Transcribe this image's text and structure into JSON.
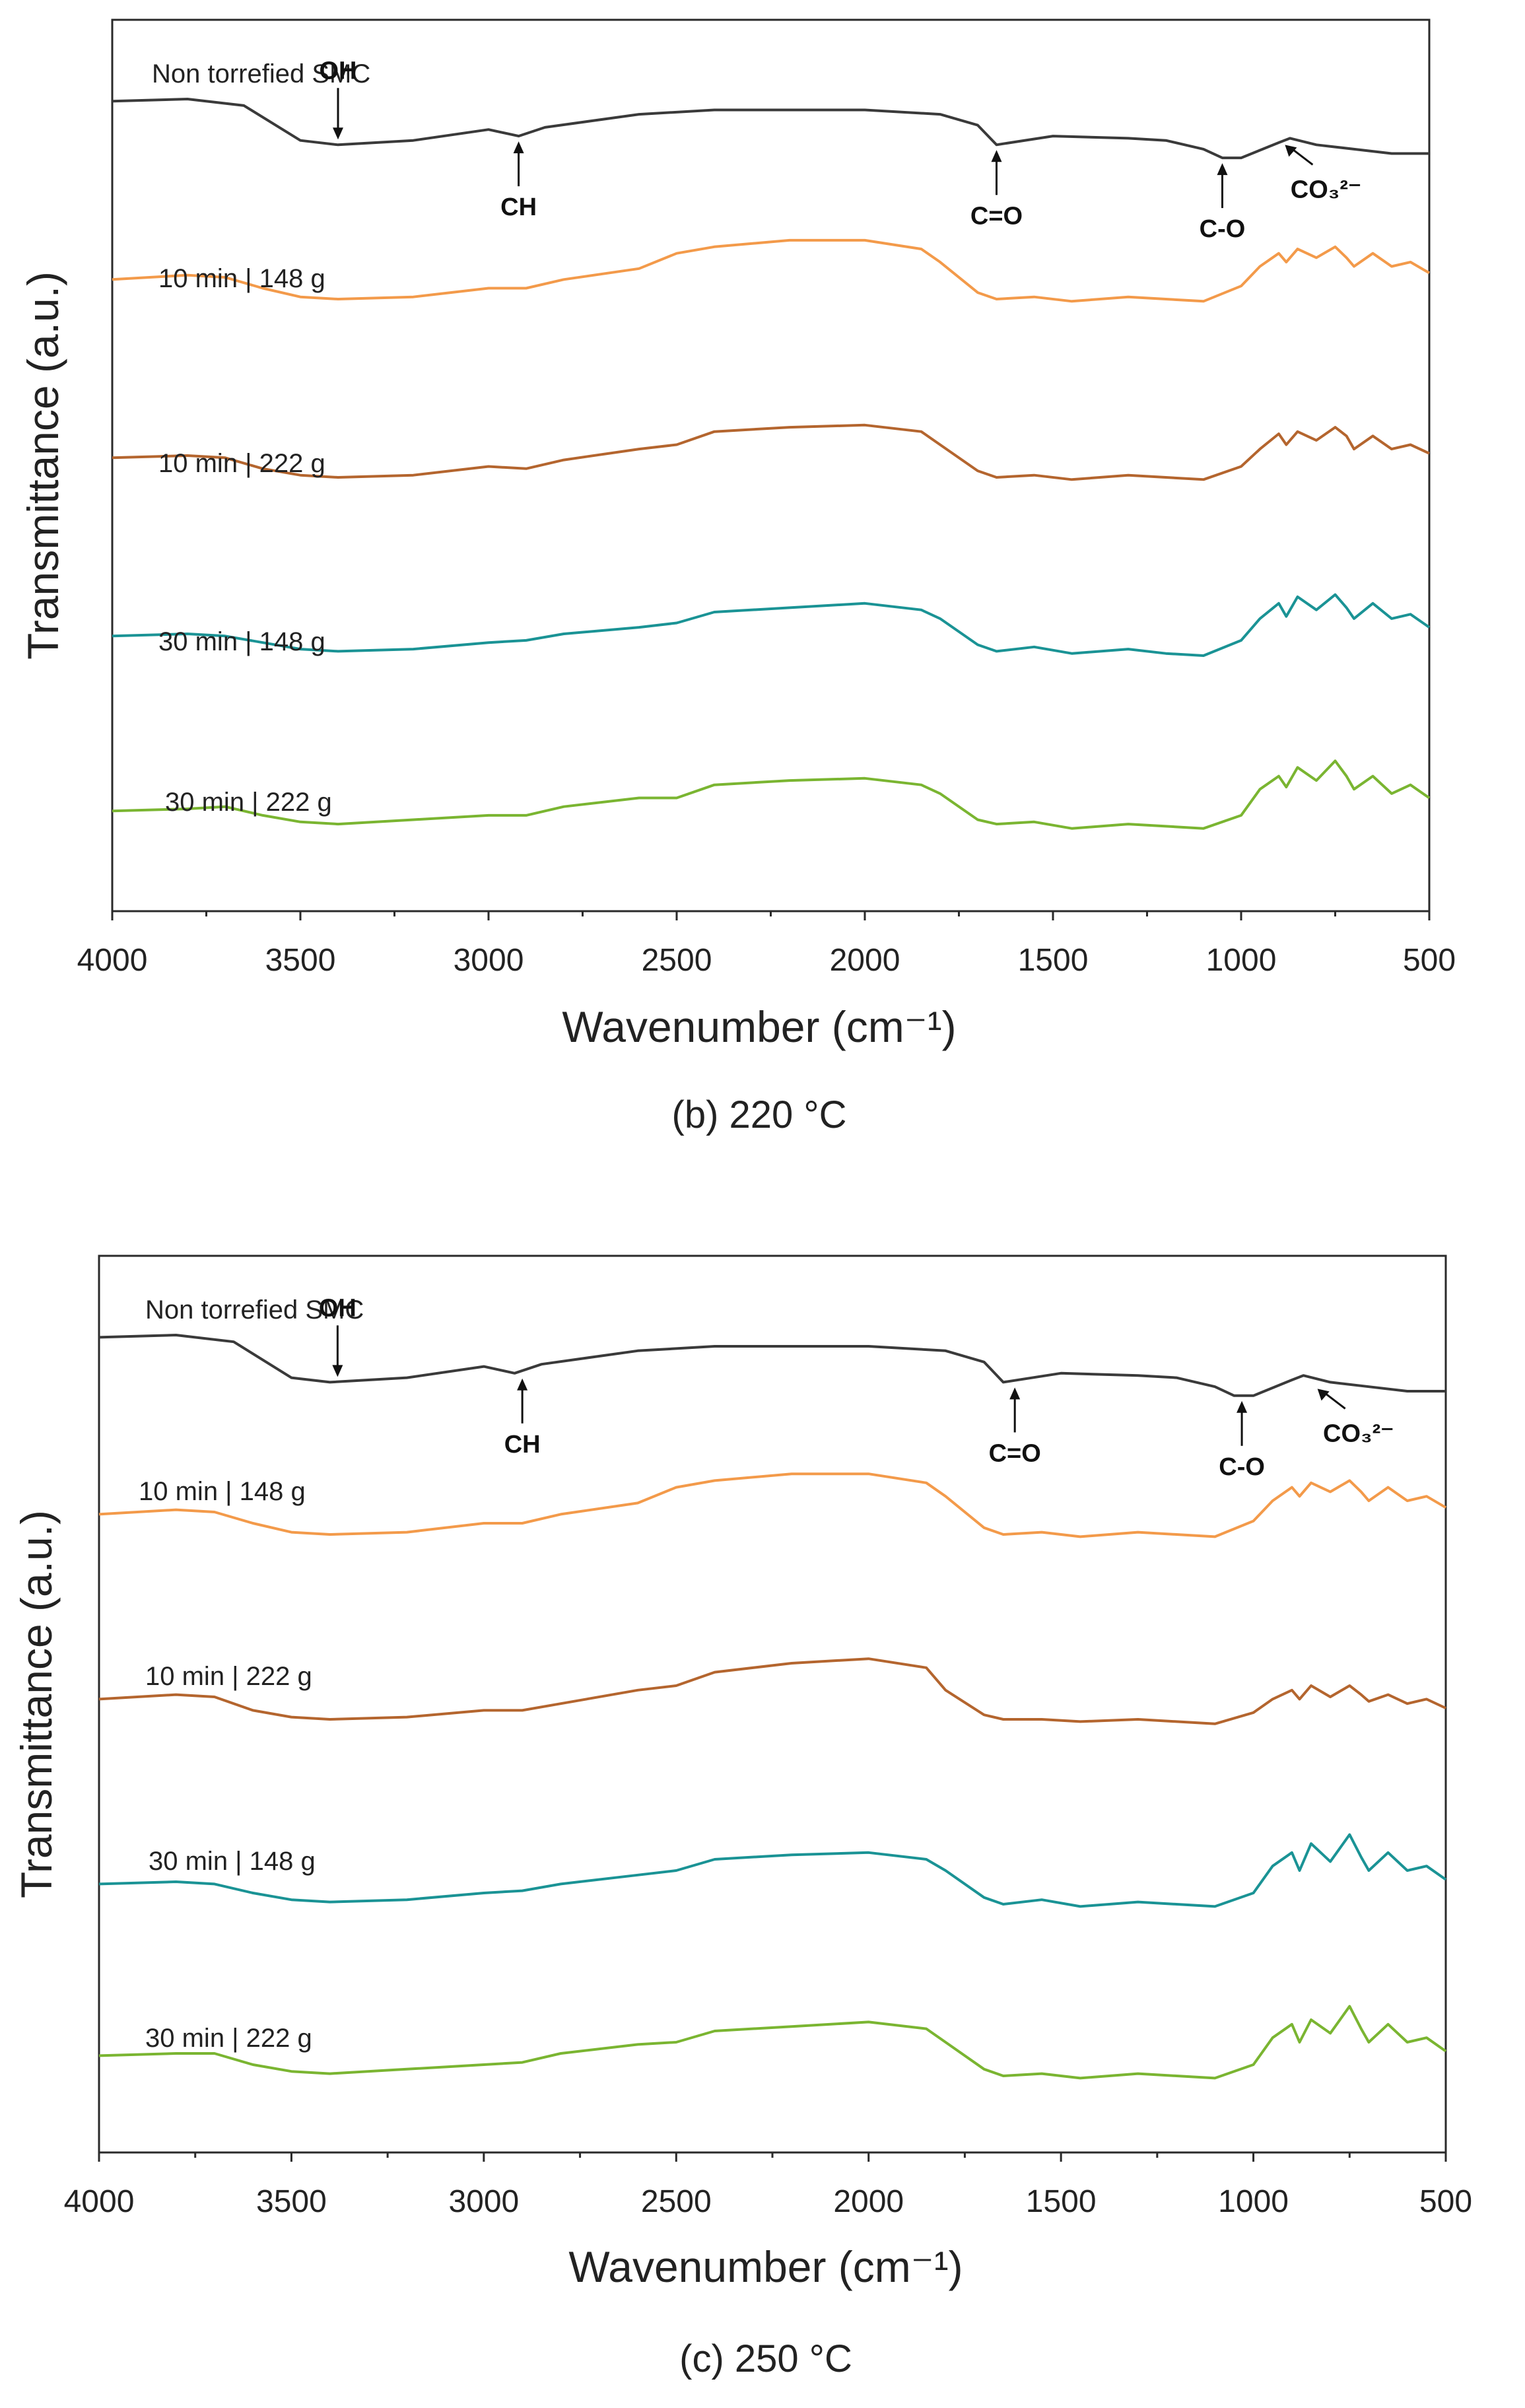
{
  "chart_data": [
    {
      "type": "line",
      "title": "(b) 220 °C",
      "xlabel": "Wavenumber (cm⁻¹)",
      "ylabel": "Transmittance (a.u.)",
      "xlim": [
        4000,
        500
      ],
      "x_ticks": [
        "4000",
        "3500",
        "3000",
        "2500",
        "2000",
        "1500",
        "1000",
        "500"
      ],
      "y_ticks": [],
      "series": [
        {
          "name": "Non torrefied SMC",
          "color": "#3a3a3a",
          "offset": 0,
          "x": [
            4000,
            3800,
            3650,
            3500,
            3400,
            3200,
            3000,
            2920,
            2850,
            2600,
            2400,
            2000,
            1800,
            1700,
            1650,
            1500,
            1300,
            1200,
            1100,
            1050,
            1000,
            900,
            870,
            800,
            700,
            600,
            500
          ],
          "y": [
            0.74,
            0.75,
            0.72,
            0.56,
            0.54,
            0.56,
            0.61,
            0.58,
            0.62,
            0.68,
            0.7,
            0.7,
            0.68,
            0.63,
            0.54,
            0.58,
            0.57,
            0.56,
            0.52,
            0.48,
            0.48,
            0.55,
            0.57,
            0.54,
            0.52,
            0.5,
            0.5
          ]
        },
        {
          "name": "10 min | 148 g",
          "color": "#f39a4a",
          "offset": 0,
          "x": [
            4000,
            3800,
            3700,
            3600,
            3500,
            3400,
            3200,
            3000,
            2900,
            2800,
            2600,
            2500,
            2400,
            2200,
            2000,
            1850,
            1800,
            1700,
            1650,
            1550,
            1450,
            1300,
            1200,
            1100,
            1000,
            950,
            900,
            880,
            850,
            800,
            750,
            720,
            700,
            650,
            600,
            550,
            500
          ],
          "y": [
            0.74,
            0.76,
            0.75,
            0.7,
            0.66,
            0.65,
            0.66,
            0.7,
            0.7,
            0.74,
            0.79,
            0.86,
            0.89,
            0.92,
            0.92,
            0.88,
            0.82,
            0.68,
            0.65,
            0.66,
            0.64,
            0.66,
            0.65,
            0.64,
            0.71,
            0.8,
            0.86,
            0.82,
            0.88,
            0.84,
            0.89,
            0.84,
            0.8,
            0.86,
            0.8,
            0.82,
            0.77
          ]
        },
        {
          "name": "10 min | 222 g",
          "color": "#b4652e",
          "offset": 0,
          "x": [
            4000,
            3800,
            3700,
            3600,
            3500,
            3400,
            3200,
            3000,
            2900,
            2800,
            2600,
            2500,
            2400,
            2200,
            2000,
            1850,
            1800,
            1700,
            1650,
            1550,
            1450,
            1300,
            1200,
            1100,
            1000,
            950,
            900,
            880,
            850,
            800,
            750,
            720,
            700,
            650,
            600,
            550,
            500
          ],
          "y": [
            0.74,
            0.75,
            0.74,
            0.69,
            0.66,
            0.65,
            0.66,
            0.7,
            0.69,
            0.73,
            0.78,
            0.8,
            0.86,
            0.88,
            0.89,
            0.86,
            0.8,
            0.68,
            0.65,
            0.66,
            0.64,
            0.66,
            0.65,
            0.64,
            0.7,
            0.78,
            0.85,
            0.8,
            0.86,
            0.82,
            0.88,
            0.84,
            0.78,
            0.84,
            0.78,
            0.8,
            0.76
          ]
        },
        {
          "name": "30 min | 148 g",
          "color": "#1a9395",
          "offset": 0,
          "x": [
            4000,
            3800,
            3700,
            3600,
            3500,
            3400,
            3200,
            3000,
            2900,
            2800,
            2600,
            2500,
            2400,
            2200,
            2000,
            1850,
            1800,
            1700,
            1650,
            1550,
            1450,
            1300,
            1200,
            1100,
            1000,
            950,
            900,
            880,
            850,
            800,
            750,
            720,
            700,
            650,
            600,
            550,
            500
          ],
          "y": [
            0.74,
            0.75,
            0.74,
            0.71,
            0.68,
            0.67,
            0.68,
            0.71,
            0.72,
            0.75,
            0.78,
            0.8,
            0.85,
            0.87,
            0.89,
            0.86,
            0.82,
            0.7,
            0.67,
            0.69,
            0.66,
            0.68,
            0.66,
            0.65,
            0.72,
            0.82,
            0.89,
            0.83,
            0.92,
            0.86,
            0.93,
            0.87,
            0.82,
            0.89,
            0.82,
            0.84,
            0.78
          ]
        },
        {
          "name": "30 min | 222 g",
          "color": "#7ab531",
          "offset": 0,
          "x": [
            4000,
            3800,
            3700,
            3600,
            3500,
            3400,
            3200,
            3000,
            2900,
            2800,
            2600,
            2500,
            2400,
            2200,
            2000,
            1850,
            1800,
            1700,
            1650,
            1550,
            1450,
            1300,
            1200,
            1100,
            1000,
            950,
            900,
            880,
            850,
            800,
            750,
            720,
            700,
            650,
            600,
            550,
            500
          ],
          "y": [
            0.74,
            0.75,
            0.76,
            0.72,
            0.69,
            0.68,
            0.7,
            0.72,
            0.72,
            0.76,
            0.8,
            0.8,
            0.86,
            0.88,
            0.89,
            0.86,
            0.82,
            0.7,
            0.68,
            0.69,
            0.66,
            0.68,
            0.67,
            0.66,
            0.72,
            0.84,
            0.9,
            0.85,
            0.94,
            0.88,
            0.97,
            0.9,
            0.84,
            0.9,
            0.82,
            0.86,
            0.8
          ]
        }
      ],
      "annotations": [
        {
          "label": "OH",
          "x": 3400,
          "direction": "down"
        },
        {
          "label": "CH",
          "x": 2920,
          "direction": "up"
        },
        {
          "label": "C=O",
          "x": 1650,
          "direction": "up"
        },
        {
          "label": "C-O",
          "x": 1050,
          "direction": "up"
        },
        {
          "label": "CO₃²⁻",
          "x": 880,
          "direction": "diag"
        }
      ]
    },
    {
      "type": "line",
      "title": "(c) 250 °C",
      "xlabel": "Wavenumber (cm⁻¹)",
      "ylabel": "Transmittance (a.u.)",
      "xlim": [
        4000,
        500
      ],
      "x_ticks": [
        "4000",
        "3500",
        "3000",
        "2500",
        "2000",
        "1500",
        "1000",
        "500"
      ],
      "y_ticks": [],
      "series": [
        {
          "name": "Non torrefied SMC",
          "color": "#3a3a3a",
          "offset": 0,
          "x": [
            4000,
            3800,
            3650,
            3500,
            3400,
            3200,
            3000,
            2920,
            2850,
            2600,
            2400,
            2000,
            1800,
            1700,
            1650,
            1500,
            1300,
            1200,
            1100,
            1050,
            1000,
            900,
            870,
            800,
            700,
            600,
            500
          ],
          "y": [
            0.74,
            0.75,
            0.72,
            0.56,
            0.54,
            0.56,
            0.61,
            0.58,
            0.62,
            0.68,
            0.7,
            0.7,
            0.68,
            0.63,
            0.54,
            0.58,
            0.57,
            0.56,
            0.52,
            0.48,
            0.48,
            0.55,
            0.57,
            0.54,
            0.52,
            0.5,
            0.5
          ]
        },
        {
          "name": "10 min | 148 g",
          "color": "#f39a4a",
          "offset": 0,
          "x": [
            4000,
            3800,
            3700,
            3600,
            3500,
            3400,
            3200,
            3000,
            2900,
            2800,
            2600,
            2500,
            2400,
            2200,
            2000,
            1850,
            1800,
            1700,
            1650,
            1550,
            1450,
            1300,
            1200,
            1100,
            1000,
            950,
            900,
            880,
            850,
            800,
            750,
            720,
            700,
            650,
            600,
            550,
            500
          ],
          "y": [
            0.74,
            0.76,
            0.75,
            0.7,
            0.66,
            0.65,
            0.66,
            0.7,
            0.7,
            0.74,
            0.79,
            0.86,
            0.89,
            0.92,
            0.92,
            0.88,
            0.82,
            0.68,
            0.65,
            0.66,
            0.64,
            0.66,
            0.65,
            0.64,
            0.71,
            0.8,
            0.86,
            0.82,
            0.88,
            0.84,
            0.89,
            0.84,
            0.8,
            0.86,
            0.8,
            0.82,
            0.77
          ]
        },
        {
          "name": "10 min | 222 g",
          "color": "#b4652e",
          "offset": 0,
          "x": [
            4000,
            3800,
            3700,
            3600,
            3500,
            3400,
            3200,
            3000,
            2900,
            2800,
            2600,
            2500,
            2400,
            2200,
            2000,
            1850,
            1800,
            1700,
            1650,
            1550,
            1450,
            1300,
            1200,
            1100,
            1000,
            950,
            900,
            880,
            850,
            800,
            750,
            720,
            700,
            650,
            600,
            550,
            500
          ],
          "y": [
            0.74,
            0.76,
            0.75,
            0.69,
            0.66,
            0.65,
            0.66,
            0.69,
            0.69,
            0.72,
            0.78,
            0.8,
            0.86,
            0.9,
            0.92,
            0.88,
            0.78,
            0.67,
            0.65,
            0.65,
            0.64,
            0.65,
            0.64,
            0.63,
            0.68,
            0.74,
            0.78,
            0.74,
            0.8,
            0.75,
            0.8,
            0.76,
            0.73,
            0.76,
            0.72,
            0.74,
            0.7
          ]
        },
        {
          "name": "30 min | 148 g",
          "color": "#1a9395",
          "offset": 0,
          "x": [
            4000,
            3800,
            3700,
            3600,
            3500,
            3400,
            3200,
            3000,
            2900,
            2800,
            2600,
            2500,
            2400,
            2200,
            2000,
            1850,
            1800,
            1700,
            1650,
            1550,
            1450,
            1300,
            1200,
            1100,
            1000,
            950,
            900,
            880,
            850,
            800,
            750,
            720,
            700,
            650,
            600,
            550,
            500
          ],
          "y": [
            0.74,
            0.75,
            0.74,
            0.7,
            0.67,
            0.66,
            0.67,
            0.7,
            0.71,
            0.74,
            0.78,
            0.8,
            0.85,
            0.87,
            0.88,
            0.85,
            0.8,
            0.68,
            0.65,
            0.67,
            0.64,
            0.66,
            0.65,
            0.64,
            0.7,
            0.82,
            0.88,
            0.8,
            0.92,
            0.84,
            0.96,
            0.86,
            0.8,
            0.88,
            0.8,
            0.82,
            0.76
          ]
        },
        {
          "name": "30 min | 222 g",
          "color": "#7ab531",
          "offset": 0,
          "x": [
            4000,
            3800,
            3700,
            3600,
            3500,
            3400,
            3200,
            3000,
            2900,
            2800,
            2600,
            2500,
            2400,
            2200,
            2000,
            1850,
            1800,
            1700,
            1650,
            1550,
            1450,
            1300,
            1200,
            1100,
            1000,
            950,
            900,
            880,
            850,
            800,
            750,
            720,
            700,
            650,
            600,
            550,
            500
          ],
          "y": [
            0.74,
            0.75,
            0.75,
            0.7,
            0.67,
            0.66,
            0.68,
            0.7,
            0.71,
            0.75,
            0.79,
            0.8,
            0.85,
            0.87,
            0.89,
            0.86,
            0.8,
            0.68,
            0.65,
            0.66,
            0.64,
            0.66,
            0.65,
            0.64,
            0.7,
            0.82,
            0.88,
            0.8,
            0.9,
            0.84,
            0.96,
            0.86,
            0.8,
            0.88,
            0.8,
            0.82,
            0.76
          ]
        }
      ],
      "annotations": [
        {
          "label": "OH",
          "x": 3380,
          "direction": "down"
        },
        {
          "label": "CH",
          "x": 2900,
          "direction": "up"
        },
        {
          "label": "C=O",
          "x": 1620,
          "direction": "up"
        },
        {
          "label": "C-O",
          "x": 1030,
          "direction": "up"
        },
        {
          "label": "CO₃²⁻",
          "x": 830,
          "direction": "diag"
        }
      ]
    }
  ]
}
